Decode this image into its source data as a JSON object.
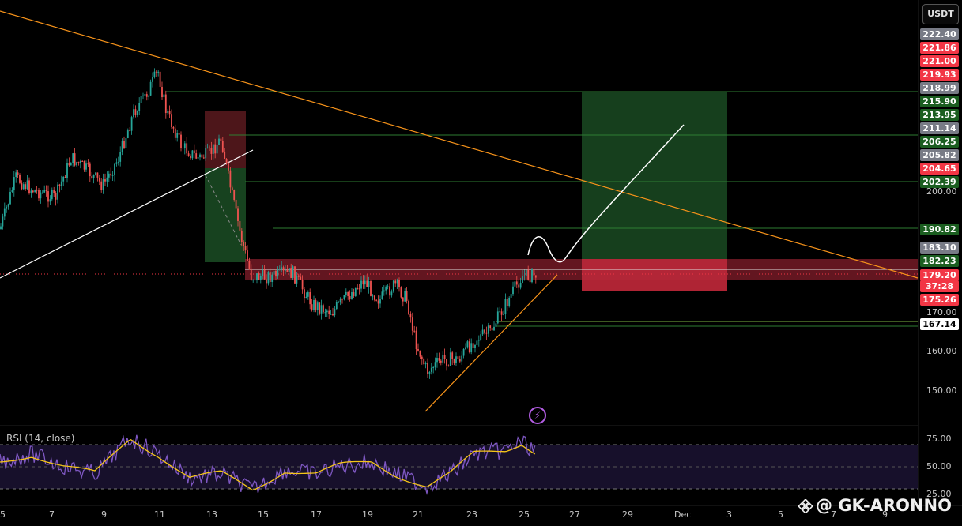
{
  "toolbar": {
    "currency_label": "USDT"
  },
  "indicator": {
    "rsi_label": "RSI (14, close)"
  },
  "watermark": {
    "text": "@ GK-ARONNO",
    "logo_icon": "binance-diamond-icon"
  },
  "event_icon": "lightning-icon",
  "price_axis": {
    "labels": [
      "200.00",
      "170.00",
      "160.00",
      "150.00"
    ],
    "tags": [
      {
        "text": "222.40",
        "bg": "#787b86",
        "fg": "#ffffff"
      },
      {
        "text": "221.86",
        "bg": "#f23645",
        "fg": "#ffffff"
      },
      {
        "text": "221.00",
        "bg": "#f23645",
        "fg": "#ffffff"
      },
      {
        "text": "219.93",
        "bg": "#f23645",
        "fg": "#ffffff"
      },
      {
        "text": "218.99",
        "bg": "#787b86",
        "fg": "#ffffff"
      },
      {
        "text": "215.90",
        "bg": "#1b5e20",
        "fg": "#ffffff"
      },
      {
        "text": "213.95",
        "bg": "#1b5e20",
        "fg": "#ffffff"
      },
      {
        "text": "211.14",
        "bg": "#787b86",
        "fg": "#ffffff"
      },
      {
        "text": "206.25",
        "bg": "#1b5e20",
        "fg": "#ffffff"
      },
      {
        "text": "205.82",
        "bg": "#787b86",
        "fg": "#ffffff"
      },
      {
        "text": "204.65",
        "bg": "#f23645",
        "fg": "#ffffff"
      },
      {
        "text": "202.39",
        "bg": "#1b5e20",
        "fg": "#ffffff"
      },
      {
        "text": "190.82",
        "bg": "#1b5e20",
        "fg": "#ffffff"
      },
      {
        "text": "183.10",
        "bg": "#787b86",
        "fg": "#ffffff"
      },
      {
        "text": "182.23",
        "bg": "#1b5e20",
        "fg": "#ffffff"
      },
      {
        "text": "179.20",
        "bg": "#f23645",
        "fg": "#ffffff"
      },
      {
        "text": "37:28",
        "bg": "#f23645",
        "fg": "#ffffff"
      },
      {
        "text": "175.26",
        "bg": "#f23645",
        "fg": "#ffffff"
      },
      {
        "text": "167.14",
        "bg": "#ffffff",
        "fg": "#000000"
      }
    ]
  },
  "rsi_axis": {
    "labels": [
      "75.00",
      "50.00",
      "25.00"
    ]
  },
  "time_axis": {
    "labels": [
      "5",
      "7",
      "9",
      "11",
      "13",
      "15",
      "17",
      "19",
      "21",
      "23",
      "25",
      "27",
      "29",
      "Dec",
      "3",
      "5",
      "7",
      "9"
    ]
  },
  "colors": {
    "up": "#26a69a",
    "down": "#ef5350",
    "trendline": "#f7931a",
    "rsi": "#7e57c2",
    "rsi_ma": "#f5c518",
    "target_zone": "#1b5e20",
    "stop_zone": "#f23645"
  }
}
